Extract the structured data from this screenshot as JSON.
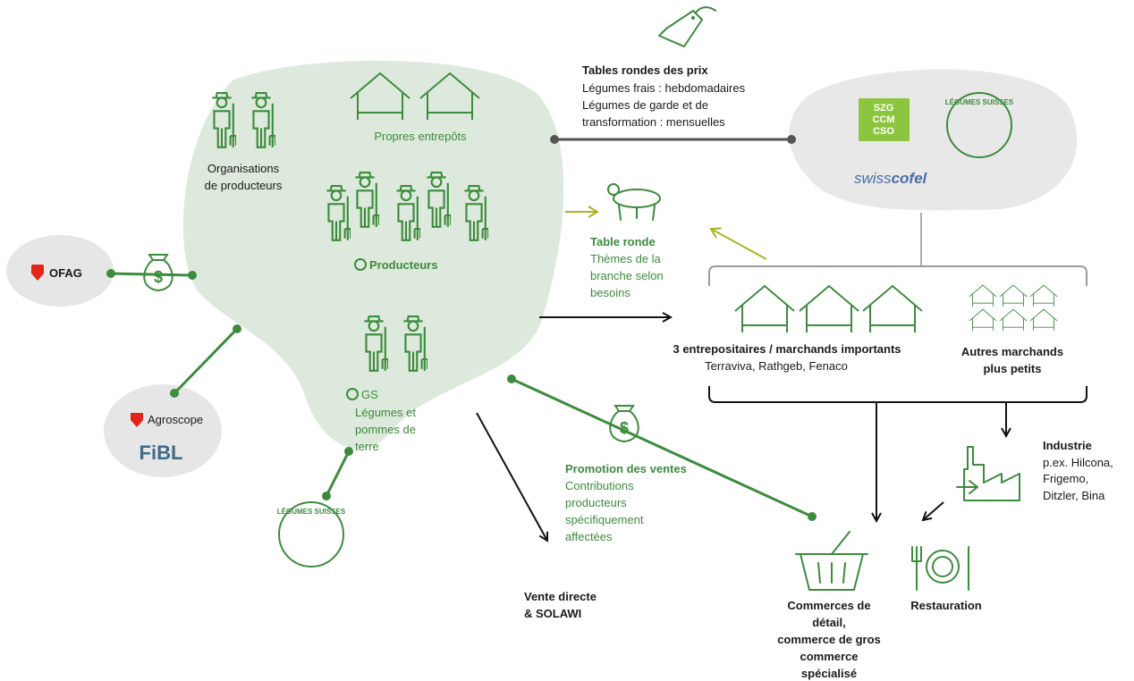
{
  "price_roundtables": {
    "title": "Tables rondes des prix",
    "lines": [
      "Légumes frais : hebdomadaires",
      "Légumes de garde et de",
      "transformation : mensuelles"
    ]
  },
  "producer_orgs": {
    "lines": [
      "Organisations",
      "de producteurs"
    ]
  },
  "own_warehouses": "Propres entrepôts",
  "producers": "Producteurs",
  "gs": {
    "lines": [
      "GS",
      "Légumes et",
      "pommes de",
      "terre"
    ]
  },
  "ofag": "OFAG",
  "research": {
    "agroscope": "Agroscope",
    "fibl": "FiBL"
  },
  "logos": {
    "szg": [
      "SZG",
      "CCM",
      "CSO"
    ],
    "swisscofel": [
      "swiss",
      "cofel"
    ],
    "legumes_suisses": "LÉGUMES SUISSES"
  },
  "roundtable": {
    "title": "Table ronde",
    "lines": [
      "Thèmes de la",
      "branche selon",
      "besoins"
    ]
  },
  "big_traders": {
    "title": "3 entrepositaires / marchands importants",
    "subtitle": "Terraviva, Rathgeb, Fenaco"
  },
  "small_traders": {
    "lines": [
      "Autres marchands",
      "plus petits"
    ]
  },
  "industry": {
    "title": "Industrie",
    "lines": [
      "p.ex. Hilcona,",
      "Frigemo,",
      "Ditzler, Bina"
    ]
  },
  "promotion": {
    "title": "Promotion des ventes",
    "lines": [
      "Contributions",
      "producteurs",
      "spécifiquement",
      "affectées"
    ]
  },
  "direct_sales": {
    "lines": [
      "Vente directe",
      "& SOLAWI"
    ]
  },
  "retail": {
    "lines": [
      "Commerces de",
      "détail,",
      "commerce de gros",
      "commerce",
      "spécialisé"
    ]
  },
  "restaurants": "Restauration"
}
